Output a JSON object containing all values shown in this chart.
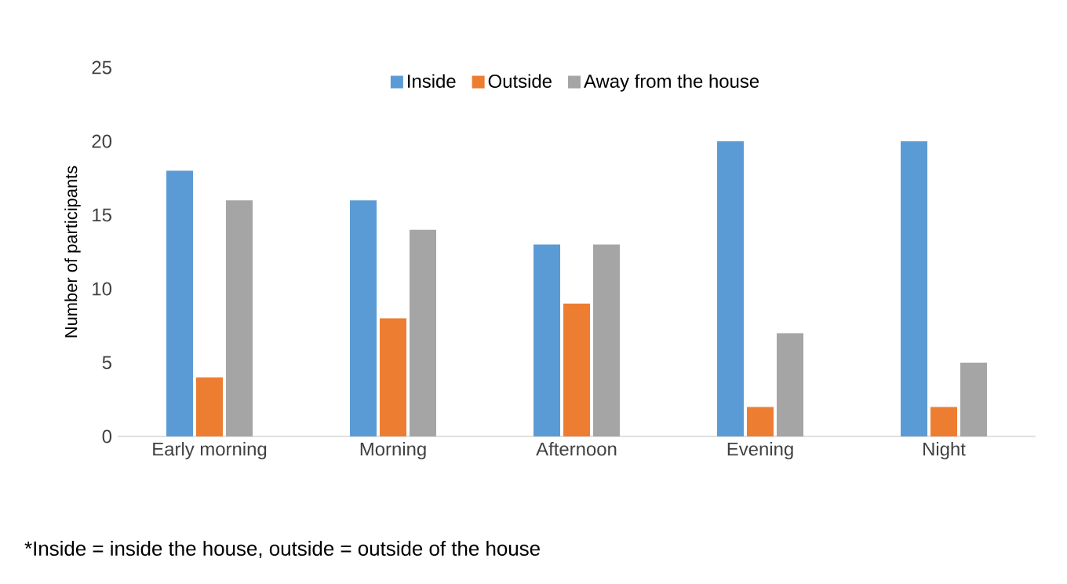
{
  "chart_data": {
    "type": "bar",
    "ylabel": "Number of participants",
    "categories": [
      "Early morning",
      "Morning",
      "Afternoon",
      "Evening",
      "Night"
    ],
    "series": [
      {
        "name": "Inside",
        "color": "#5b9bd5",
        "values": [
          18,
          16,
          13,
          20,
          20
        ]
      },
      {
        "name": "Outside",
        "color": "#ed7d31",
        "values": [
          4,
          8,
          9,
          2,
          2
        ]
      },
      {
        "name": "Away from the house",
        "color": "#a5a5a5",
        "values": [
          16,
          14,
          13,
          7,
          5
        ]
      }
    ],
    "ylim": [
      0,
      25
    ],
    "yticks": [
      0,
      5,
      10,
      15,
      20,
      25
    ],
    "legend": "top",
    "annotations": [
      "*Inside = inside the house, outside = outside of the house"
    ]
  }
}
